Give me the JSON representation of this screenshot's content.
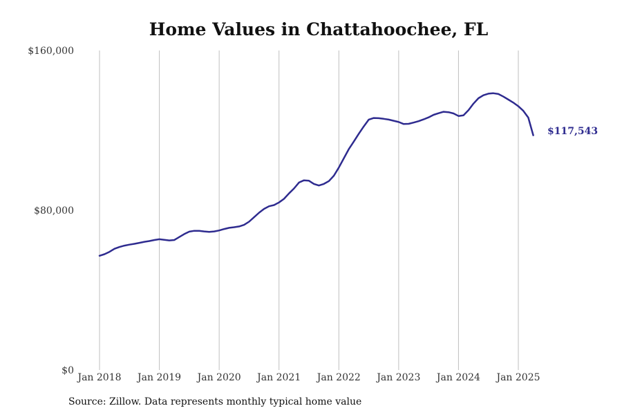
{
  "title": "Home Values in Chattahoochee, FL",
  "source": "Source: Zillow. Data represents monthly typical home value",
  "colors": {
    "line": "#2e2b8f",
    "grid": "#bfbfbf",
    "text": "#333333"
  },
  "chart_data": {
    "type": "line",
    "title": "Home Values in Chattahoochee, FL",
    "xlabel": "",
    "ylabel": "",
    "ylim": [
      0,
      160000
    ],
    "xlim": [
      "2018-01",
      "2025-04"
    ],
    "y_ticks": [
      0,
      80000,
      160000
    ],
    "y_tick_labels": [
      "$0",
      "$80,000",
      "$160,000"
    ],
    "x_ticks": [
      "2018-01",
      "2019-01",
      "2020-01",
      "2021-01",
      "2022-01",
      "2023-01",
      "2024-01",
      "2025-01"
    ],
    "x_tick_labels": [
      "Jan 2018",
      "Jan 2019",
      "Jan 2020",
      "Jan 2021",
      "Jan 2022",
      "Jan 2023",
      "Jan 2024",
      "Jan 2025"
    ],
    "grid": "vertical",
    "end_label": "$117,543",
    "series": [
      {
        "name": "",
        "x": [
          "2018-01",
          "2018-02",
          "2018-03",
          "2018-04",
          "2018-05",
          "2018-06",
          "2018-07",
          "2018-08",
          "2018-09",
          "2018-10",
          "2018-11",
          "2018-12",
          "2019-01",
          "2019-02",
          "2019-03",
          "2019-04",
          "2019-05",
          "2019-06",
          "2019-07",
          "2019-08",
          "2019-09",
          "2019-10",
          "2019-11",
          "2019-12",
          "2020-01",
          "2020-02",
          "2020-03",
          "2020-04",
          "2020-05",
          "2020-06",
          "2020-07",
          "2020-08",
          "2020-09",
          "2020-10",
          "2020-11",
          "2020-12",
          "2021-01",
          "2021-02",
          "2021-03",
          "2021-04",
          "2021-05",
          "2021-06",
          "2021-07",
          "2021-08",
          "2021-09",
          "2021-10",
          "2021-11",
          "2021-12",
          "2022-01",
          "2022-02",
          "2022-03",
          "2022-04",
          "2022-05",
          "2022-06",
          "2022-07",
          "2022-08",
          "2022-09",
          "2022-10",
          "2022-11",
          "2022-12",
          "2023-01",
          "2023-02",
          "2023-03",
          "2023-04",
          "2023-05",
          "2023-06",
          "2023-07",
          "2023-08",
          "2023-09",
          "2023-10",
          "2023-11",
          "2023-12",
          "2024-01",
          "2024-02",
          "2024-03",
          "2024-04",
          "2024-05",
          "2024-06",
          "2024-07",
          "2024-08",
          "2024-09",
          "2024-10",
          "2024-11",
          "2024-12",
          "2025-01",
          "2025-02",
          "2025-03",
          "2025-04"
        ],
        "values": [
          57200,
          58000,
          59200,
          60700,
          61600,
          62300,
          62800,
          63200,
          63700,
          64200,
          64600,
          65100,
          65500,
          65200,
          64900,
          65100,
          66600,
          68100,
          69300,
          69700,
          69700,
          69400,
          69200,
          69400,
          69900,
          70600,
          71200,
          71500,
          71900,
          72700,
          74300,
          76500,
          78800,
          80700,
          82000,
          82600,
          83900,
          85700,
          88400,
          90900,
          93900,
          95000,
          94800,
          93200,
          92400,
          93200,
          94600,
          97300,
          101400,
          106000,
          110600,
          114400,
          118300,
          122000,
          125400,
          126200,
          126100,
          125800,
          125400,
          124800,
          124200,
          123200,
          123300,
          123900,
          124600,
          125500,
          126500,
          127800,
          128600,
          129300,
          129100,
          128500,
          127200,
          127500,
          130100,
          133400,
          136100,
          137600,
          138400,
          138600,
          138200,
          136900,
          135400,
          133900,
          132100,
          129800,
          126400,
          117543
        ]
      }
    ]
  }
}
